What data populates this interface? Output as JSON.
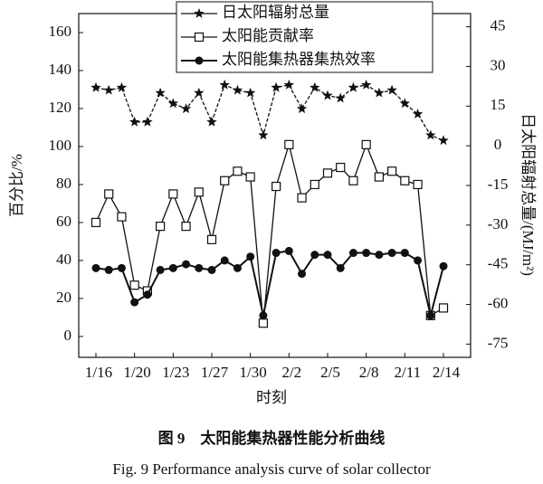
{
  "chart_data": {
    "type": "line",
    "caption_cn": "图 9　太阳能集热器性能分析曲线",
    "caption_en": "Fig. 9 Performance analysis curve of solar collector",
    "xlabel": "时刻",
    "ylabel": "百分比/%",
    "y2label": "日太阳辐射总量/(MJ/m²)",
    "categories": [
      "1/16",
      null,
      null,
      "1/20",
      null,
      null,
      "1/23",
      null,
      null,
      "1/27",
      null,
      null,
      "1/30",
      null,
      null,
      "2/2",
      null,
      null,
      "2/5",
      null,
      null,
      "2/8",
      null,
      null,
      "2/11",
      null,
      null,
      "2/14"
    ],
    "ylim": [
      -11,
      170
    ],
    "yticks": [
      0,
      20,
      40,
      60,
      80,
      100,
      120,
      140,
      160
    ],
    "y2lim": [
      -80,
      50
    ],
    "y2ticks": [
      45,
      30,
      15,
      0,
      -15,
      -30,
      -45,
      -60,
      -75
    ],
    "legend": "upper center",
    "series": [
      {
        "name": "日太阳辐射总量",
        "color": "#111111",
        "marker": "star",
        "axis": "y2",
        "values": [
          22,
          21,
          22,
          9,
          9,
          20,
          16,
          14,
          20,
          9,
          23,
          21,
          20,
          4,
          22,
          23,
          14,
          22,
          19,
          18,
          22,
          23,
          20,
          21,
          16,
          12,
          4,
          2
        ]
      },
      {
        "name": "太阳能贡献率",
        "color": "#111111",
        "marker": "square",
        "values": [
          60,
          75,
          63,
          27,
          24,
          58,
          75,
          58,
          76,
          51,
          82,
          87,
          84,
          7,
          79,
          101,
          73,
          80,
          86,
          89,
          82,
          101,
          84,
          87,
          82,
          80,
          11,
          15
        ]
      },
      {
        "name": "太阳能集热器集热效率",
        "color": "#111111",
        "marker": "circle",
        "values": [
          36,
          35,
          36,
          18,
          22,
          35,
          36,
          38,
          36,
          35,
          40,
          36,
          42,
          11,
          44,
          45,
          33,
          43,
          43,
          36,
          44,
          44,
          43,
          44,
          44,
          40,
          11,
          37
        ]
      }
    ]
  }
}
